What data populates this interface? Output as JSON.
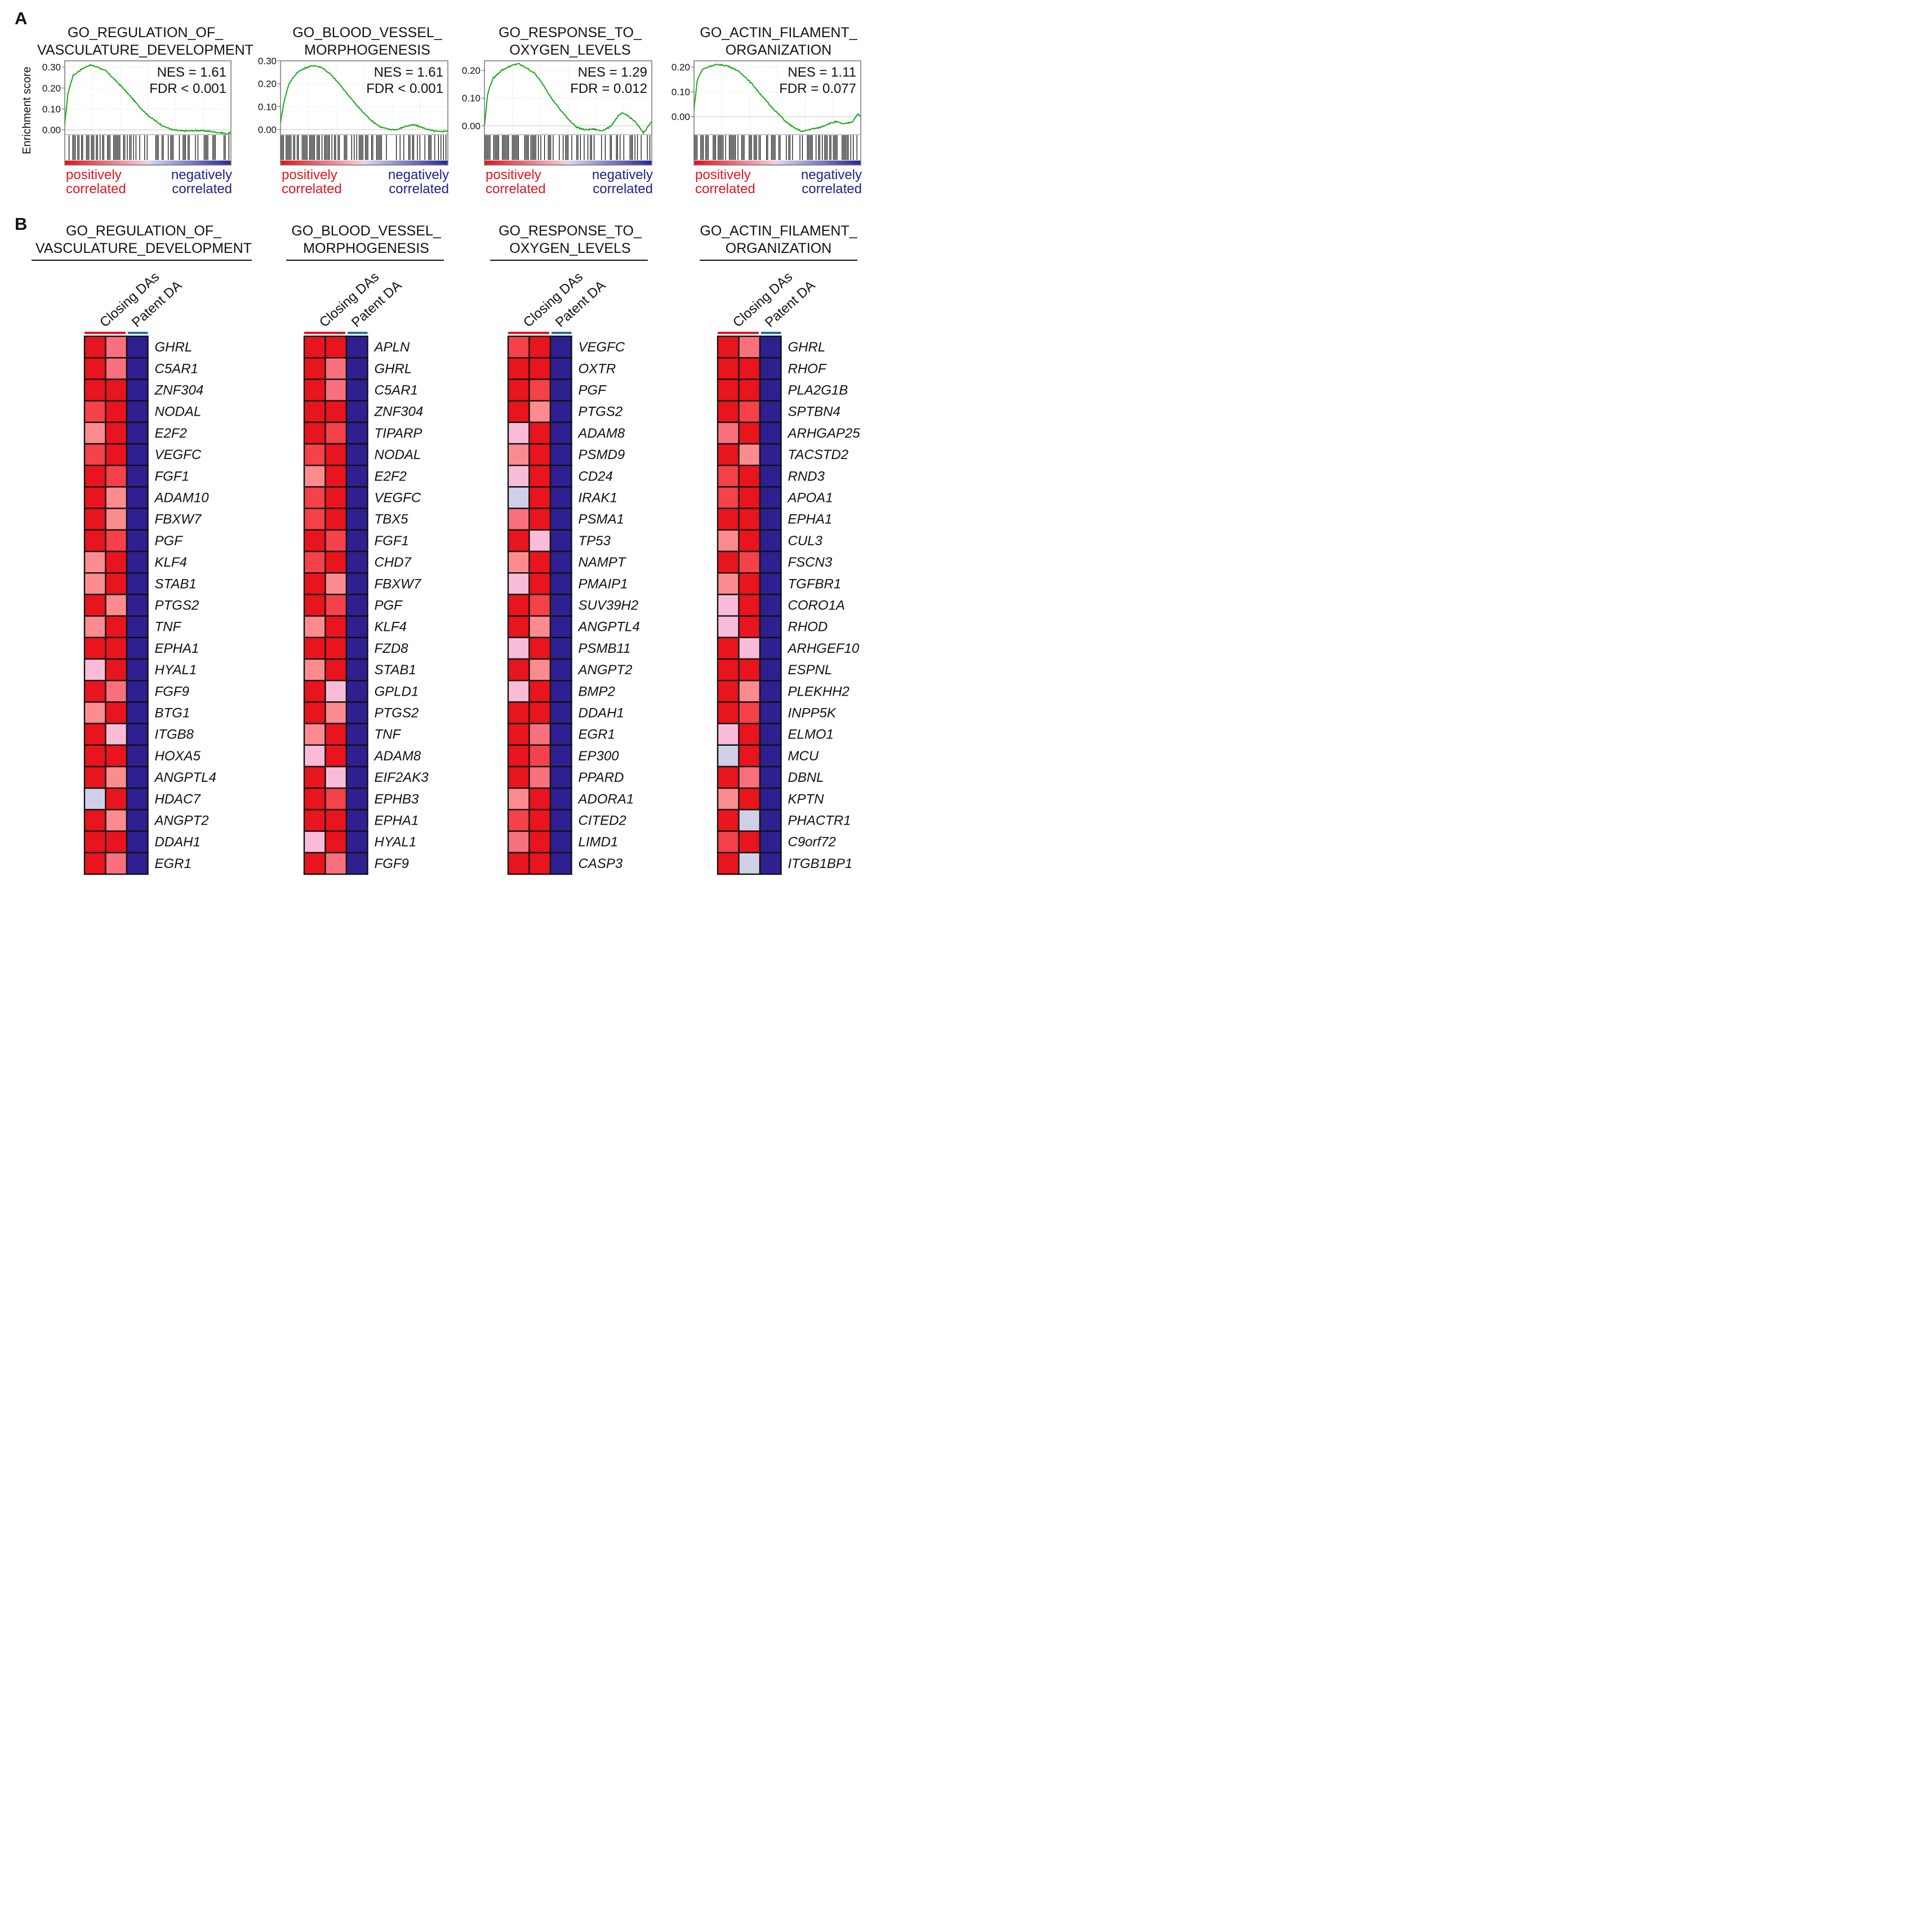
{
  "figure": {
    "panel_a_label": "A",
    "panel_b_label": "B",
    "axis_ylabel": "Enrichment score",
    "positive_label": [
      "positively",
      "correlated"
    ],
    "negative_label": [
      "negatively",
      "correlated"
    ],
    "column_labels": [
      "Closing DAs",
      "Patent DA"
    ],
    "colors": {
      "positive": "#e8141e",
      "negative": "#202090",
      "curve": "#1aa81a",
      "closing_bar": "#e8141e",
      "patent_bar": "#1a6fc0"
    }
  },
  "chart_data": [
    {
      "type": "line",
      "panel": "A",
      "title": [
        "GO_REGULATION_OF_",
        "VASCULATURE_DEVELOPMENT"
      ],
      "ylabel": "Enrichment score",
      "ylim": [
        -0.02,
        0.33
      ],
      "yticks": [
        "0.30",
        "0.20",
        "0.10",
        "0.00"
      ],
      "ytick_values": [
        0.3,
        0.2,
        0.1,
        0.0
      ],
      "nes": "NES = 1.61",
      "fdr": "FDR < 0.001",
      "x": [
        0,
        0.02,
        0.05,
        0.1,
        0.15,
        0.2,
        0.25,
        0.3,
        0.35,
        0.4,
        0.45,
        0.5,
        0.55,
        0.6,
        0.65,
        0.7,
        0.75,
        0.8,
        0.85,
        0.9,
        0.95,
        0.98,
        1.0
      ],
      "y": [
        0.03,
        0.18,
        0.26,
        0.29,
        0.31,
        0.3,
        0.28,
        0.24,
        0.2,
        0.155,
        0.11,
        0.07,
        0.04,
        0.015,
        0.0,
        -0.005,
        -0.005,
        -0.003,
        -0.005,
        -0.01,
        -0.015,
        -0.02,
        -0.01
      ],
      "hit_density": 0.75
    },
    {
      "type": "line",
      "panel": "A",
      "title": [
        "GO_BLOOD_VESSEL_",
        "MORPHOGENESIS"
      ],
      "ylabel": "",
      "ylim": [
        -0.02,
        0.3
      ],
      "yticks": [
        "0.30",
        "0.20",
        "0.10",
        "0.00"
      ],
      "ytick_values": [
        0.3,
        0.2,
        0.1,
        0.0
      ],
      "nes": "NES = 1.61",
      "fdr": "FDR < 0.001",
      "x": [
        0,
        0.02,
        0.05,
        0.1,
        0.15,
        0.2,
        0.25,
        0.3,
        0.35,
        0.4,
        0.45,
        0.5,
        0.55,
        0.6,
        0.65,
        0.7,
        0.75,
        0.8,
        0.85,
        0.9,
        0.95,
        1.0
      ],
      "y": [
        0.03,
        0.12,
        0.2,
        0.25,
        0.27,
        0.28,
        0.27,
        0.24,
        0.2,
        0.155,
        0.11,
        0.07,
        0.035,
        0.01,
        0.0,
        0.0,
        0.015,
        0.02,
        0.008,
        -0.005,
        -0.01,
        -0.005
      ],
      "hit_density": 0.78
    },
    {
      "type": "line",
      "panel": "A",
      "title": [
        "GO_RESPONSE_TO_",
        "OXYGEN_LEVELS"
      ],
      "ylabel": "",
      "ylim": [
        -0.03,
        0.235
      ],
      "yticks": [
        "0.20",
        "0.10",
        "0.00"
      ],
      "ytick_values": [
        0.2,
        0.1,
        0.0
      ],
      "nes": "NES = 1.29",
      "fdr": "FDR = 0.012",
      "x": [
        0,
        0.02,
        0.05,
        0.1,
        0.15,
        0.2,
        0.25,
        0.3,
        0.35,
        0.4,
        0.45,
        0.5,
        0.55,
        0.6,
        0.65,
        0.7,
        0.75,
        0.8,
        0.82,
        0.85,
        0.9,
        0.95,
        1.0
      ],
      "y": [
        0.0,
        0.12,
        0.17,
        0.2,
        0.215,
        0.225,
        0.21,
        0.19,
        0.15,
        0.1,
        0.06,
        0.025,
        -0.005,
        -0.015,
        -0.012,
        -0.018,
        -0.005,
        0.035,
        0.045,
        0.04,
        0.015,
        -0.025,
        0.015
      ],
      "hit_density": 0.7
    },
    {
      "type": "line",
      "panel": "A",
      "title": [
        "GO_ACTIN_FILAMENT_",
        "ORGANIZATION"
      ],
      "ylabel": "",
      "ylim": [
        -0.07,
        0.225
      ],
      "yticks": [
        "0.20",
        "0.10",
        "0.00"
      ],
      "ytick_values": [
        0.2,
        0.1,
        0.0
      ],
      "nes": "NES = 1.11",
      "fdr": "FDR = 0.077",
      "x": [
        0,
        0.02,
        0.05,
        0.1,
        0.15,
        0.2,
        0.25,
        0.3,
        0.35,
        0.4,
        0.45,
        0.5,
        0.55,
        0.6,
        0.65,
        0.7,
        0.75,
        0.8,
        0.85,
        0.9,
        0.95,
        0.98,
        1.0
      ],
      "y": [
        0.03,
        0.15,
        0.19,
        0.205,
        0.21,
        0.205,
        0.19,
        0.165,
        0.13,
        0.09,
        0.05,
        0.015,
        -0.02,
        -0.045,
        -0.06,
        -0.05,
        -0.045,
        -0.03,
        -0.02,
        -0.03,
        -0.02,
        0.01,
        0.0
      ],
      "hit_density": 0.72
    },
    {
      "type": "heatmap",
      "panel": "B",
      "title": [
        "GO_REGULATION_OF_",
        "VASCULATURE_DEVELOPMENT"
      ],
      "columns": [
        "Closing DAs",
        "Closing DAs",
        "Patent DA"
      ],
      "scale": "0 = light blue/pink, 4 = saturated red, -1 = dark blue",
      "genes": [
        "GHRL",
        "C5AR1",
        "ZNF304",
        "NODAL",
        "E2F2",
        "VEGFC",
        "FGF1",
        "ADAM10",
        "FBXW7",
        "PGF",
        "KLF4",
        "STAB1",
        "PTGS2",
        "TNF",
        "EPHA1",
        "HYAL1",
        "FGF9",
        "BTG1",
        "ITGB8",
        "HOXA5",
        "ANGPTL4",
        "HDAC7",
        "ANGPT2",
        "DDAH1",
        "EGR1"
      ],
      "values": [
        [
          4,
          3,
          -1
        ],
        [
          4,
          3,
          -1
        ],
        [
          4,
          4,
          -1
        ],
        [
          3.5,
          4,
          -1
        ],
        [
          2.5,
          4,
          -1
        ],
        [
          3.5,
          4,
          -1
        ],
        [
          4,
          3.5,
          -1
        ],
        [
          4,
          2.5,
          -1
        ],
        [
          4,
          2.5,
          -1
        ],
        [
          4,
          3.5,
          -1
        ],
        [
          2.5,
          4,
          -1
        ],
        [
          2.5,
          4,
          -1
        ],
        [
          4,
          2.5,
          -1
        ],
        [
          2.5,
          4,
          -1
        ],
        [
          4,
          4,
          -1
        ],
        [
          1,
          4,
          -1
        ],
        [
          4,
          3,
          -1
        ],
        [
          2.5,
          4,
          -1
        ],
        [
          4,
          1,
          -1
        ],
        [
          4,
          4,
          -1
        ],
        [
          4,
          2.5,
          -1
        ],
        [
          0,
          4,
          -1
        ],
        [
          4,
          2.5,
          -1
        ],
        [
          4,
          4,
          -1
        ],
        [
          4,
          3,
          -1
        ]
      ]
    },
    {
      "type": "heatmap",
      "panel": "B",
      "title": [
        "GO_BLOOD_VESSEL_",
        "MORPHOGENESIS"
      ],
      "columns": [
        "Closing DAs",
        "Closing DAs",
        "Patent DA"
      ],
      "scale": "0 = light blue/pink, 4 = saturated red, -1 = dark blue",
      "genes": [
        "APLN",
        "GHRL",
        "C5AR1",
        "ZNF304",
        "TIPARP",
        "NODAL",
        "E2F2",
        "VEGFC",
        "TBX5",
        "FGF1",
        "CHD7",
        "FBXW7",
        "PGF",
        "KLF4",
        "FZD8",
        "STAB1",
        "GPLD1",
        "PTGS2",
        "TNF",
        "ADAM8",
        "EIF2AK3",
        "EPHB3",
        "EPHA1",
        "HYAL1",
        "FGF9"
      ],
      "values": [
        [
          4,
          4,
          -1
        ],
        [
          4,
          3,
          -1
        ],
        [
          4,
          3,
          -1
        ],
        [
          4,
          4,
          -1
        ],
        [
          4,
          3.5,
          -1
        ],
        [
          3.5,
          4,
          -1
        ],
        [
          2.5,
          4,
          -1
        ],
        [
          3.5,
          4,
          -1
        ],
        [
          3.5,
          4,
          -1
        ],
        [
          4,
          3.5,
          -1
        ],
        [
          3.5,
          4,
          -1
        ],
        [
          4,
          2.5,
          -1
        ],
        [
          4,
          3.5,
          -1
        ],
        [
          2.5,
          4,
          -1
        ],
        [
          4,
          4,
          -1
        ],
        [
          2.5,
          4,
          -1
        ],
        [
          4,
          1,
          -1
        ],
        [
          4,
          2.5,
          -1
        ],
        [
          2.5,
          4,
          -1
        ],
        [
          1,
          4,
          -1
        ],
        [
          4,
          1,
          -1
        ],
        [
          4,
          3.5,
          -1
        ],
        [
          4,
          4,
          -1
        ],
        [
          1,
          4,
          -1
        ],
        [
          4,
          3,
          -1
        ]
      ]
    },
    {
      "type": "heatmap",
      "panel": "B",
      "title": [
        "GO_RESPONSE_TO_",
        "OXYGEN_LEVELS"
      ],
      "columns": [
        "Closing DAs",
        "Closing DAs",
        "Patent DA"
      ],
      "scale": "0 = light blue/pink, 4 = saturated red, -1 = dark blue",
      "genes": [
        "VEGFC",
        "OXTR",
        "PGF",
        "PTGS2",
        "ADAM8",
        "PSMD9",
        "CD24",
        "IRAK1",
        "PSMA1",
        "TP53",
        "NAMPT",
        "PMAIP1",
        "SUV39H2",
        "ANGPTL4",
        "PSMB11",
        "ANGPT2",
        "BMP2",
        "DDAH1",
        "EGR1",
        "EP300",
        "PPARD",
        "ADORA1",
        "CITED2",
        "LIMD1",
        "CASP3"
      ],
      "values": [
        [
          3.5,
          4,
          -1
        ],
        [
          4,
          4,
          -1
        ],
        [
          4,
          3.5,
          -1
        ],
        [
          4,
          2.5,
          -1
        ],
        [
          1,
          4,
          -1
        ],
        [
          2.5,
          4,
          -1
        ],
        [
          1,
          4,
          -1
        ],
        [
          0,
          4,
          -1
        ],
        [
          3,
          4,
          -1
        ],
        [
          4,
          1,
          -1
        ],
        [
          2.5,
          4,
          -1
        ],
        [
          1,
          4,
          -1
        ],
        [
          4,
          3.5,
          -1
        ],
        [
          4,
          2.5,
          -1
        ],
        [
          1,
          4,
          -1
        ],
        [
          4,
          2.5,
          -1
        ],
        [
          1,
          4,
          -1
        ],
        [
          4,
          4,
          -1
        ],
        [
          4,
          3,
          -1
        ],
        [
          4,
          3.5,
          -1
        ],
        [
          4,
          3,
          -1
        ],
        [
          2.5,
          4,
          -1
        ],
        [
          3.5,
          4,
          -1
        ],
        [
          3,
          4,
          -1
        ],
        [
          4,
          4,
          -1
        ]
      ]
    },
    {
      "type": "heatmap",
      "panel": "B",
      "title": [
        "GO_ACTIN_FILAMENT_",
        "ORGANIZATION"
      ],
      "columns": [
        "Closing DAs",
        "Closing DAs",
        "Patent DA"
      ],
      "scale": "0 = light blue/pink, 4 = saturated red, -1 = dark blue",
      "genes": [
        "GHRL",
        "RHOF",
        "PLA2G1B",
        "SPTBN4",
        "ARHGAP25",
        "TACSTD2",
        "RND3",
        "APOA1",
        "EPHA1",
        "CUL3",
        "FSCN3",
        "TGFBR1",
        "CORO1A",
        "RHOD",
        "ARHGEF10",
        "ESPNL",
        "PLEKHH2",
        "INPP5K",
        "ELMO1",
        "MCU",
        "DBNL",
        "KPTN",
        "PHACTR1",
        "C9orf72",
        "ITGB1BP1"
      ],
      "values": [
        [
          4,
          3,
          -1
        ],
        [
          4,
          4,
          -1
        ],
        [
          4,
          4,
          -1
        ],
        [
          4,
          3.5,
          -1
        ],
        [
          3,
          4,
          -1
        ],
        [
          4,
          2.5,
          -1
        ],
        [
          3.5,
          4,
          -1
        ],
        [
          3.5,
          4,
          -1
        ],
        [
          4,
          4,
          -1
        ],
        [
          2.5,
          4,
          -1
        ],
        [
          4,
          3.5,
          -1
        ],
        [
          2.5,
          4,
          -1
        ],
        [
          1,
          4,
          -1
        ],
        [
          1,
          4,
          -1
        ],
        [
          4,
          1,
          -1
        ],
        [
          4,
          4,
          -1
        ],
        [
          4,
          2.5,
          -1
        ],
        [
          4,
          3.5,
          -1
        ],
        [
          1,
          4,
          -1
        ],
        [
          0,
          4,
          -1
        ],
        [
          4,
          3,
          -1
        ],
        [
          2.5,
          4,
          -1
        ],
        [
          4,
          0,
          -1
        ],
        [
          3.5,
          4,
          -1
        ],
        [
          4,
          0,
          -1
        ]
      ]
    }
  ]
}
